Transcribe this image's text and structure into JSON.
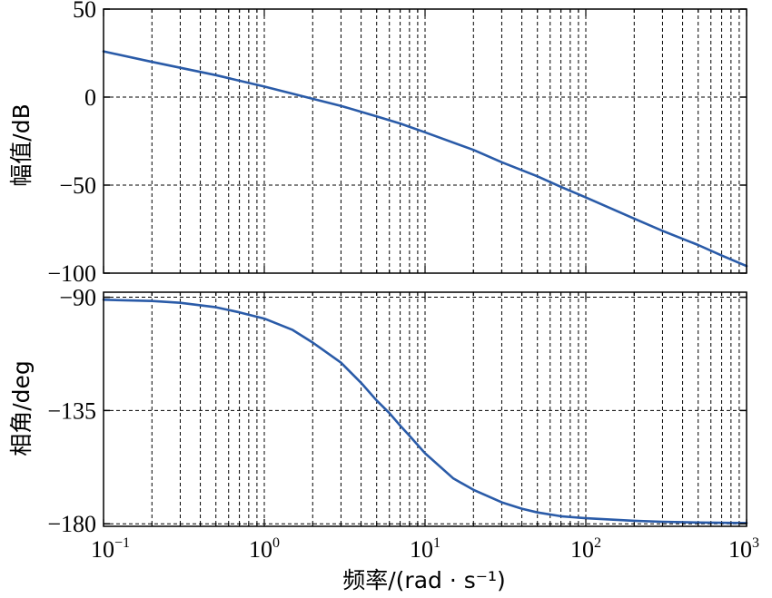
{
  "chart_data": [
    {
      "type": "line",
      "panel": "magnitude",
      "ylabel": "幅值/dB",
      "ylim": [
        -100,
        50
      ],
      "yticks": [
        "50",
        "0",
        "−50",
        "−100"
      ],
      "ytick_values": [
        50,
        0,
        -50,
        -100
      ],
      "xscale": "log",
      "xlim": [
        0.1,
        1000
      ],
      "grid": true,
      "series": [
        {
          "color": "#2a5ba8",
          "x": [
            0.1,
            0.2,
            0.5,
            1,
            2,
            3,
            5,
            7,
            10,
            20,
            30,
            50,
            70,
            100,
            200,
            300,
            500,
            700,
            1000
          ],
          "y": [
            26,
            20,
            12.5,
            6,
            -1,
            -5,
            -11,
            -15,
            -20,
            -30,
            -37,
            -45,
            -51,
            -57,
            -69,
            -76,
            -84,
            -90,
            -96
          ]
        }
      ]
    },
    {
      "type": "line",
      "panel": "phase",
      "ylabel": "相角/deg",
      "xlabel": "频率/(rad · s⁻¹)",
      "ylim": [
        -181,
        -88
      ],
      "yticks": [
        "−90",
        "−135",
        "−180"
      ],
      "ytick_values": [
        -90,
        -135,
        -180
      ],
      "xscale": "log",
      "xlim": [
        0.1,
        1000
      ],
      "xticks": [
        {
          "base": "10",
          "exp": "−1",
          "value": 0.1
        },
        {
          "base": "10",
          "exp": "0",
          "value": 1
        },
        {
          "base": "10",
          "exp": "1",
          "value": 10
        },
        {
          "base": "10",
          "exp": "2",
          "value": 100
        },
        {
          "base": "10",
          "exp": "3",
          "value": 1000
        }
      ],
      "grid": true,
      "series": [
        {
          "color": "#2a5ba8",
          "x": [
            0.1,
            0.2,
            0.3,
            0.5,
            0.7,
            1,
            1.5,
            2,
            3,
            4,
            5,
            6,
            7,
            8,
            10,
            15,
            20,
            30,
            40,
            50,
            70,
            100,
            200,
            300,
            500,
            1000
          ],
          "y": [
            -91,
            -91.5,
            -92.2,
            -94,
            -96,
            -98.5,
            -103,
            -108,
            -116,
            -124,
            -131,
            -136,
            -141,
            -145,
            -152,
            -162,
            -166.5,
            -171.5,
            -174,
            -175.5,
            -177,
            -177.8,
            -178.8,
            -179.2,
            -179.5,
            -179.7
          ]
        }
      ]
    }
  ]
}
